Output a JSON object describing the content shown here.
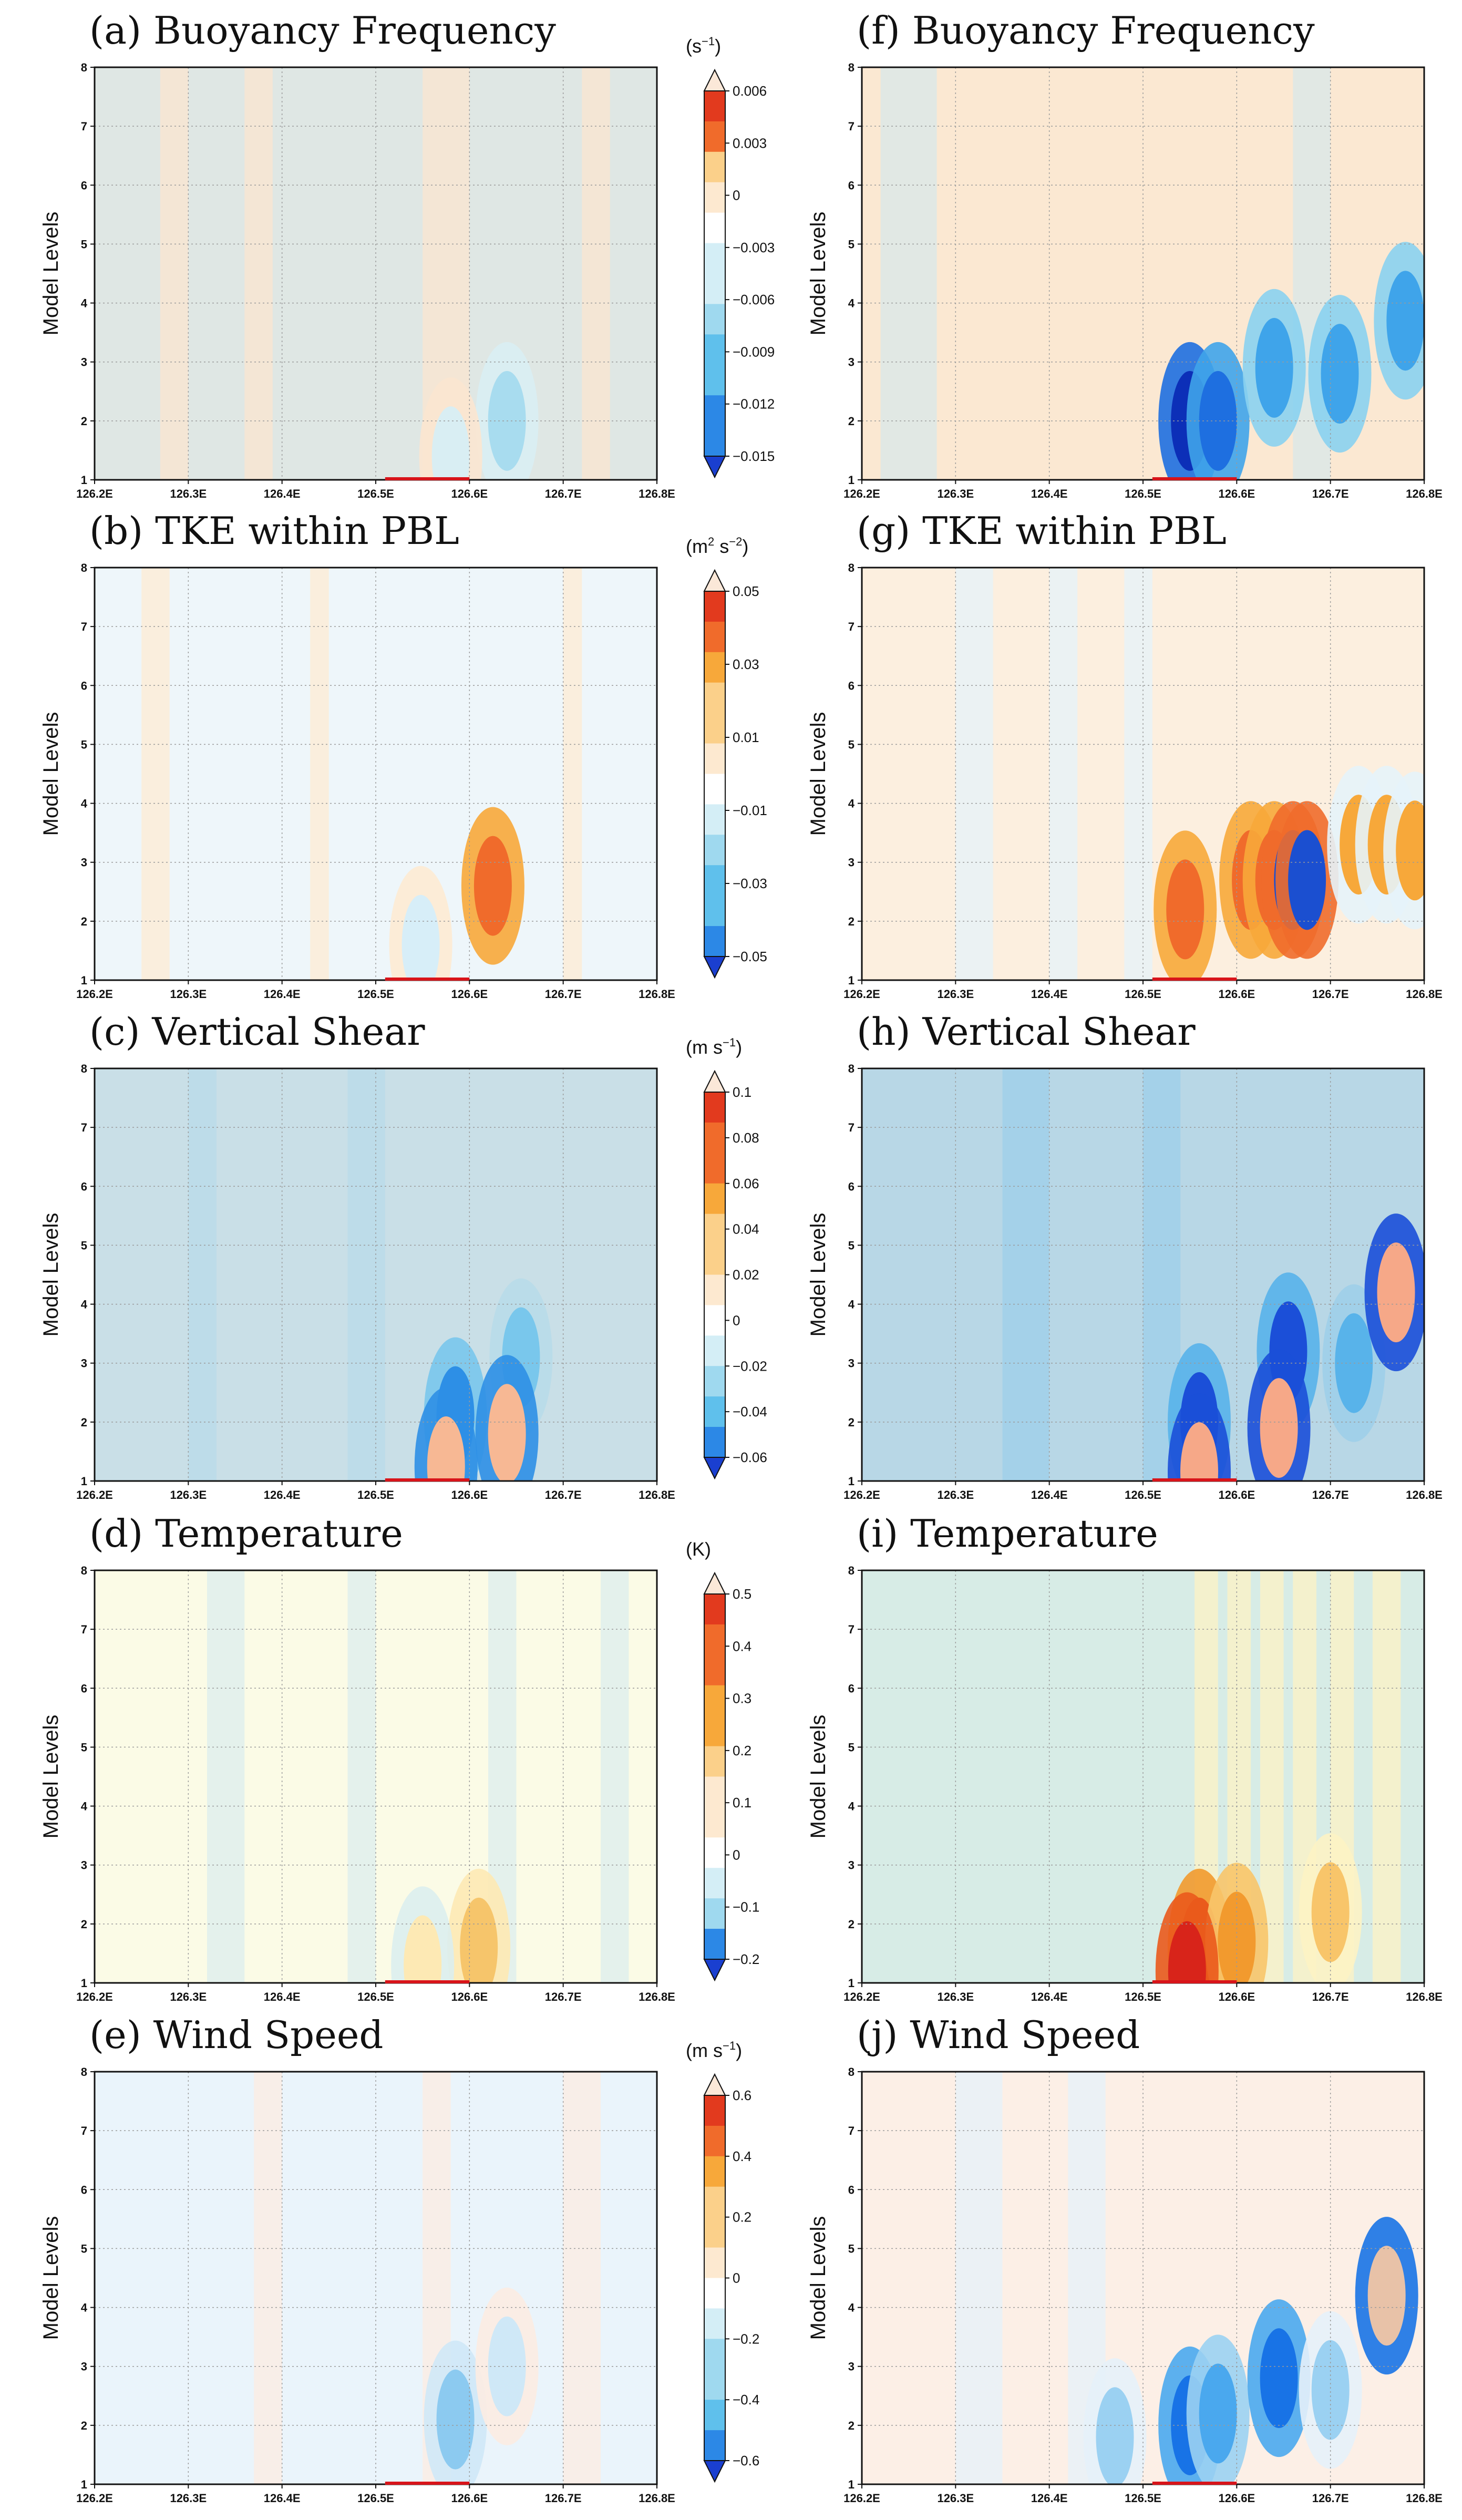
{
  "figure": {
    "x_axis_label": "",
    "y_axis_label": "Model Levels"
  },
  "chart_data": [
    {
      "type": "heatmap",
      "panel": "a",
      "title": "(a) Buoyancy Frequency",
      "xlabel": "",
      "ylabel": "Model Levels",
      "unit": "s",
      "unit_exp": "−1",
      "x_ticks": [
        "126.2E",
        "126.3E",
        "126.4E",
        "126.5E",
        "126.6E",
        "126.7E",
        "126.8E"
      ],
      "x_range": [
        126.2,
        126.8
      ],
      "y_ticks": [
        "1",
        "2",
        "3",
        "4",
        "5",
        "6",
        "7",
        "8"
      ],
      "y_range": [
        1,
        8
      ],
      "colorbar_ticks": [
        "0.006",
        "0.003",
        "0",
        "−0.003",
        "−0.006",
        "−0.009",
        "−0.012",
        "−0.015"
      ],
      "colorbar_range": [
        -0.015,
        0.006
      ],
      "background": "#dfe7e4",
      "colors": [
        "#fbe6d0",
        "#d9eef3",
        "#a8dcef",
        "#4fc0ea",
        "#1f7ee8",
        "#1533c9"
      ],
      "features": [
        {
          "x": 126.64,
          "y": 2.0,
          "level": 2
        },
        {
          "x": 126.58,
          "y": 1.4,
          "level": 1
        }
      ],
      "stripes": [
        {
          "x": 126.27,
          "w": 0.03
        },
        {
          "x": 126.36,
          "w": 0.03
        },
        {
          "x": 126.55,
          "w": 0.05
        },
        {
          "x": 126.72,
          "w": 0.03
        }
      ]
    },
    {
      "type": "heatmap",
      "panel": "b",
      "title": "(b) TKE within PBL",
      "xlabel": "",
      "ylabel": "Model Levels",
      "unit": "m",
      "unit_exp": "2",
      "unit_post": " s",
      "unit_post_exp": "−2",
      "x_ticks": [
        "126.2E",
        "126.3E",
        "126.4E",
        "126.5E",
        "126.6E",
        "126.7E",
        "126.8E"
      ],
      "x_range": [
        126.2,
        126.8
      ],
      "y_ticks": [
        "1",
        "2",
        "3",
        "4",
        "5",
        "6",
        "7",
        "8"
      ],
      "y_range": [
        1,
        8
      ],
      "colorbar_ticks": [
        "0.05",
        "0.03",
        "0.01",
        "−0.01",
        "−0.03",
        "−0.05"
      ],
      "colorbar_range": [
        -0.05,
        0.05
      ],
      "background": "#eef6fa",
      "colors": [
        "#fdebd3",
        "#d7eef8",
        "#f7a83a",
        "#f06b2b",
        "#1b55d8"
      ],
      "features": [
        {
          "x": 126.625,
          "y": 2.6,
          "level": 3
        },
        {
          "x": 126.548,
          "y": 1.6,
          "level": 1
        }
      ],
      "stripes": [
        {
          "x": 126.25,
          "w": 0.03
        },
        {
          "x": 126.43,
          "w": 0.02
        },
        {
          "x": 126.7,
          "w": 0.02
        }
      ]
    },
    {
      "type": "heatmap",
      "panel": "c",
      "title": "(c) Vertical Shear",
      "xlabel": "",
      "ylabel": "Model Levels",
      "unit": "m s",
      "unit_exp": "−1",
      "x_ticks": [
        "126.2E",
        "126.3E",
        "126.4E",
        "126.5E",
        "126.6E",
        "126.7E",
        "126.8E"
      ],
      "x_range": [
        126.2,
        126.8
      ],
      "y_ticks": [
        "1",
        "2",
        "3",
        "4",
        "5",
        "6",
        "7",
        "8"
      ],
      "y_range": [
        1,
        8
      ],
      "colorbar_ticks": [
        "0.1",
        "0.08",
        "0.06",
        "0.04",
        "0.02",
        "0",
        "−0.02",
        "−0.04",
        "−0.06"
      ],
      "colorbar_range": [
        -0.06,
        0.1
      ],
      "background": "#c9dfe7",
      "colors": [
        "#b8dbe9",
        "#79c7ec",
        "#2d8fe6",
        "#f7b894"
      ],
      "features": [
        {
          "x": 126.585,
          "y": 2.1,
          "level": 2
        },
        {
          "x": 126.655,
          "y": 3.1,
          "level": 1
        },
        {
          "x": 126.575,
          "y": 1.25,
          "level": 3
        },
        {
          "x": 126.64,
          "y": 1.8,
          "level": 3
        }
      ],
      "stripes": [
        {
          "x": 126.3,
          "w": 0.03
        },
        {
          "x": 126.47,
          "w": 0.04
        }
      ]
    },
    {
      "type": "heatmap",
      "panel": "d",
      "title": "(d) Temperature",
      "xlabel": "",
      "ylabel": "Model Levels",
      "unit": "K",
      "unit_exp": "",
      "x_ticks": [
        "126.2E",
        "126.3E",
        "126.4E",
        "126.5E",
        "126.6E",
        "126.7E",
        "126.8E"
      ],
      "x_range": [
        126.2,
        126.8
      ],
      "y_ticks": [
        "1",
        "2",
        "3",
        "4",
        "5",
        "6",
        "7",
        "8"
      ],
      "y_range": [
        1,
        8
      ],
      "colorbar_ticks": [
        "0.5",
        "0.4",
        "0.3",
        "0.2",
        "0.1",
        "0",
        "−0.1",
        "−0.2"
      ],
      "colorbar_range": [
        -0.2,
        0.5
      ],
      "background": "#fbfbe6",
      "colors": [
        "#dceeee",
        "#fde9b4",
        "#f6c56b"
      ],
      "features": [
        {
          "x": 126.61,
          "y": 1.6,
          "level": 2
        },
        {
          "x": 126.55,
          "y": 1.3,
          "level": 1
        }
      ],
      "stripes": [
        {
          "x": 126.32,
          "w": 0.04
        },
        {
          "x": 126.47,
          "w": 0.03
        },
        {
          "x": 126.62,
          "w": 0.03
        },
        {
          "x": 126.74,
          "w": 0.03
        }
      ]
    },
    {
      "type": "heatmap",
      "panel": "e",
      "title": "(e) Wind Speed",
      "xlabel": "",
      "ylabel": "Model Levels",
      "unit": "m s",
      "unit_exp": "−1",
      "x_ticks": [
        "126.2E",
        "126.3E",
        "126.4E",
        "126.5E",
        "126.6E",
        "126.7E",
        "126.8E"
      ],
      "x_range": [
        126.2,
        126.8
      ],
      "y_ticks": [
        "1",
        "2",
        "3",
        "4",
        "5",
        "6",
        "7",
        "8"
      ],
      "y_range": [
        1,
        8
      ],
      "colorbar_ticks": [
        "0.6",
        "0.4",
        "0.2",
        "0",
        "−0.2",
        "−0.4",
        "−0.6"
      ],
      "colorbar_range": [
        -0.6,
        0.6
      ],
      "background": "#eaf4fb",
      "colors": [
        "#fcece2",
        "#cfe8f7",
        "#8ccaf0"
      ],
      "features": [
        {
          "x": 126.585,
          "y": 2.1,
          "level": 2
        },
        {
          "x": 126.64,
          "y": 3.0,
          "level": 1
        }
      ],
      "stripes": [
        {
          "x": 126.37,
          "w": 0.03
        },
        {
          "x": 126.55,
          "w": 0.03
        },
        {
          "x": 126.7,
          "w": 0.04
        }
      ]
    },
    {
      "type": "heatmap",
      "panel": "f",
      "title": "(f) Buoyancy Frequency",
      "xlabel": "",
      "ylabel": "Model Levels",
      "unit": "",
      "unit_exp": "",
      "x_ticks": [
        "126.2E",
        "126.3E",
        "126.4E",
        "126.5E",
        "126.6E",
        "126.7E",
        "126.8E"
      ],
      "x_range": [
        126.2,
        126.8
      ],
      "y_ticks": [
        "1",
        "2",
        "3",
        "4",
        "5",
        "6",
        "7",
        "8"
      ],
      "y_range": [
        1,
        8
      ],
      "colorbar_ticks": [],
      "colorbar_range": [
        -0.015,
        0.006
      ],
      "background": "#fbe8d2",
      "colors": [
        "#d8e8ea",
        "#8ad2f0",
        "#3fa4ea",
        "#1e6fe0",
        "#0c2fb8"
      ],
      "features": [
        {
          "x": 126.55,
          "y": 2.0,
          "level": 4
        },
        {
          "x": 126.58,
          "y": 2.0,
          "level": 3
        },
        {
          "x": 126.64,
          "y": 2.9,
          "level": 2
        },
        {
          "x": 126.71,
          "y": 2.8,
          "level": 2
        },
        {
          "x": 126.78,
          "y": 3.7,
          "level": 2
        }
      ],
      "stripes": [
        {
          "x": 126.66,
          "w": 0.04
        },
        {
          "x": 126.22,
          "w": 0.06
        }
      ]
    },
    {
      "type": "heatmap",
      "panel": "g",
      "title": "(g) TKE within PBL",
      "xlabel": "",
      "ylabel": "Model Levels",
      "unit": "",
      "unit_exp": "",
      "x_ticks": [
        "126.2E",
        "126.3E",
        "126.4E",
        "126.5E",
        "126.6E",
        "126.7E",
        "126.8E"
      ],
      "x_range": [
        126.2,
        126.8
      ],
      "y_ticks": [
        "1",
        "2",
        "3",
        "4",
        "5",
        "6",
        "7",
        "8"
      ],
      "y_range": [
        1,
        8
      ],
      "colorbar_ticks": [],
      "colorbar_range": [
        -0.05,
        0.05
      ],
      "background": "#fcefdf",
      "colors": [
        "#e6f3f9",
        "#f7a83a",
        "#f06b2b",
        "#1b4fd0"
      ],
      "features": [
        {
          "x": 126.545,
          "y": 2.2,
          "level": 2
        },
        {
          "x": 126.615,
          "y": 2.7,
          "level": 2
        },
        {
          "x": 126.64,
          "y": 2.7,
          "level": 2
        },
        {
          "x": 126.66,
          "y": 2.7,
          "level": 3
        },
        {
          "x": 126.675,
          "y": 2.7,
          "level": 3
        },
        {
          "x": 126.73,
          "y": 3.3,
          "level": 1
        },
        {
          "x": 126.76,
          "y": 3.3,
          "level": 1
        },
        {
          "x": 126.79,
          "y": 3.2,
          "level": 1
        }
      ],
      "stripes": [
        {
          "x": 126.3,
          "w": 0.04
        },
        {
          "x": 126.4,
          "w": 0.03
        },
        {
          "x": 126.48,
          "w": 0.03
        }
      ]
    },
    {
      "type": "heatmap",
      "panel": "h",
      "title": "(h) Vertical Shear",
      "xlabel": "",
      "ylabel": "Model Levels",
      "unit": "",
      "unit_exp": "",
      "x_ticks": [
        "126.2E",
        "126.3E",
        "126.4E",
        "126.5E",
        "126.6E",
        "126.7E",
        "126.8E"
      ],
      "x_range": [
        126.2,
        126.8
      ],
      "y_ticks": [
        "1",
        "2",
        "3",
        "4",
        "5",
        "6",
        "7",
        "8"
      ],
      "y_range": [
        1,
        8
      ],
      "colorbar_ticks": [],
      "colorbar_range": [
        -0.06,
        0.1
      ],
      "background": "#b8d7e6",
      "colors": [
        "#9ecfe9",
        "#58b3ea",
        "#1b4fd8",
        "#f6a888"
      ],
      "features": [
        {
          "x": 126.56,
          "y": 2.0,
          "level": 2
        },
        {
          "x": 126.655,
          "y": 3.2,
          "level": 2
        },
        {
          "x": 126.725,
          "y": 3.0,
          "level": 1
        },
        {
          "x": 126.56,
          "y": 1.15,
          "level": 3
        },
        {
          "x": 126.645,
          "y": 1.9,
          "level": 3
        },
        {
          "x": 126.77,
          "y": 4.2,
          "level": 3
        }
      ],
      "stripes": [
        {
          "x": 126.35,
          "w": 0.05
        },
        {
          "x": 126.5,
          "w": 0.04
        }
      ]
    },
    {
      "type": "heatmap",
      "panel": "i",
      "title": "(i) Temperature",
      "xlabel": "",
      "ylabel": "Model Levels",
      "unit": "",
      "unit_exp": "",
      "x_ticks": [
        "126.2E",
        "126.3E",
        "126.4E",
        "126.5E",
        "126.6E",
        "126.7E",
        "126.8E"
      ],
      "x_range": [
        126.2,
        126.8
      ],
      "y_ticks": [
        "1",
        "2",
        "3",
        "4",
        "5",
        "6",
        "7",
        "8"
      ],
      "y_range": [
        1,
        8
      ],
      "colorbar_ticks": [],
      "colorbar_range": [
        -0.2,
        0.5
      ],
      "background": "#d7ece6",
      "colors": [
        "#fdf3c4",
        "#f8c56a",
        "#f29a2e",
        "#ea5a1c",
        "#d8241a",
        "#9fd6ec"
      ],
      "features": [
        {
          "x": 126.56,
          "y": 1.6,
          "level": 3
        },
        {
          "x": 126.6,
          "y": 1.7,
          "level": 2
        },
        {
          "x": 126.7,
          "y": 2.2,
          "level": 1
        },
        {
          "x": 126.547,
          "y": 1.2,
          "level": 4
        }
      ],
      "stripes": [
        {
          "x": 126.555,
          "w": 0.025
        },
        {
          "x": 126.59,
          "w": 0.025
        },
        {
          "x": 126.625,
          "w": 0.025
        },
        {
          "x": 126.66,
          "w": 0.025
        },
        {
          "x": 126.7,
          "w": 0.025
        },
        {
          "x": 126.745,
          "w": 0.03
        }
      ]
    },
    {
      "type": "heatmap",
      "panel": "j",
      "title": "(j) Wind Speed",
      "xlabel": "",
      "ylabel": "Model Levels",
      "unit": "",
      "unit_exp": "",
      "x_ticks": [
        "126.2E",
        "126.3E",
        "126.4E",
        "126.5E",
        "126.6E",
        "126.7E",
        "126.8E"
      ],
      "x_range": [
        126.2,
        126.8
      ],
      "y_ticks": [
        "1",
        "2",
        "3",
        "4",
        "5",
        "6",
        "7",
        "8"
      ],
      "y_range": [
        1,
        8
      ],
      "colorbar_ticks": [],
      "colorbar_range": [
        -0.6,
        0.6
      ],
      "background": "#fcefe6",
      "colors": [
        "#e6f1fa",
        "#9bd1f2",
        "#4aa8ee",
        "#1873e6",
        "#e8c2a8"
      ],
      "features": [
        {
          "x": 126.55,
          "y": 2.0,
          "level": 3
        },
        {
          "x": 126.58,
          "y": 2.2,
          "level": 2
        },
        {
          "x": 126.645,
          "y": 2.8,
          "level": 3
        },
        {
          "x": 126.7,
          "y": 2.6,
          "level": 1
        },
        {
          "x": 126.47,
          "y": 1.8,
          "level": 1
        },
        {
          "x": 126.76,
          "y": 4.2,
          "level": 4
        }
      ],
      "stripes": [
        {
          "x": 126.3,
          "w": 0.05
        },
        {
          "x": 126.42,
          "w": 0.04
        }
      ]
    }
  ]
}
